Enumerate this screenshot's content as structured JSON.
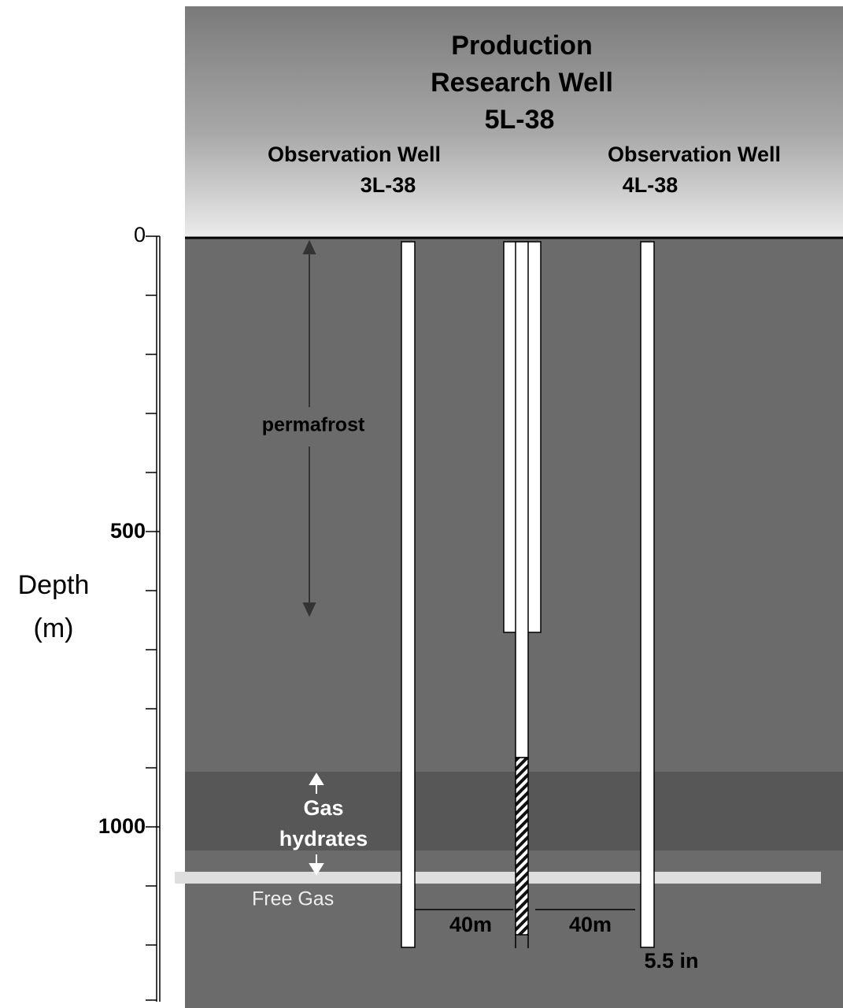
{
  "header": {
    "title_lines": [
      "Production",
      "Research Well",
      "5L-38"
    ]
  },
  "wells": [
    {
      "name": "Observation Well",
      "id": "3L-38"
    },
    {
      "name": "Observation Well",
      "id": "4L-38"
    }
  ],
  "depth_axis": {
    "label_lines": [
      "Depth",
      "(m)"
    ],
    "tick_labels": [
      "0",
      "500",
      "1000"
    ]
  },
  "zones": {
    "permafrost": "permafrost",
    "hydrates_lines": [
      "Gas",
      "hydrates"
    ],
    "free_gas": "Free Gas"
  },
  "annotations": {
    "spacing_left": "40m",
    "spacing_right": "40m",
    "casing": "5.5 in"
  }
}
